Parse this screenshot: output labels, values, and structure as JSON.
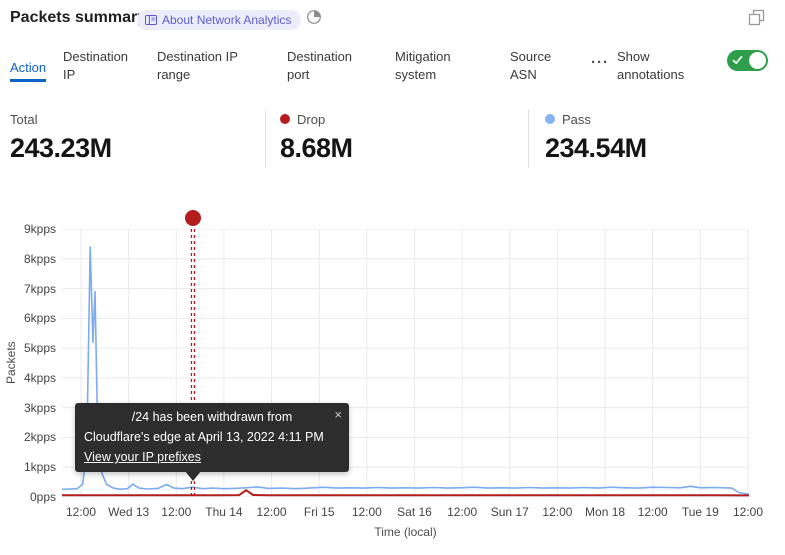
{
  "header": {
    "title": "Packets summary",
    "about_label": "About Network Analytics",
    "icons": {
      "badge": "book-icon",
      "period": "time-icon",
      "window": "popout-icon"
    }
  },
  "tabs": {
    "items": [
      {
        "label": "Action",
        "active": true
      },
      {
        "label": "Destination IP",
        "active": false
      },
      {
        "label": "Destination IP range",
        "active": false
      },
      {
        "label": "Destination port",
        "active": false
      },
      {
        "label": "Mitigation system",
        "active": false
      },
      {
        "label": "Source ASN",
        "active": false
      }
    ],
    "more": "···",
    "annotations_toggle": {
      "label": "Show annotations",
      "state": "on",
      "color": "#2e9e4b"
    }
  },
  "stats": [
    {
      "label": "Total",
      "value": "243.23M",
      "dot_color": null
    },
    {
      "label": "Drop",
      "value": "8.68M",
      "dot_color": "#b51d1d"
    },
    {
      "label": "Pass",
      "value": "234.54M",
      "dot_color": "#85b3f2"
    }
  ],
  "tooltip": {
    "lines": [
      "/24 has been withdrawn from",
      "Cloudflare's edge at April 13, 2022 4:11 PM"
    ],
    "link": "View your IP prefixes",
    "close": "×"
  },
  "chart_data": {
    "type": "line",
    "title": "Packets summary",
    "xlabel": "Time (local)",
    "ylabel": "Packets",
    "ylim": [
      0,
      9000
    ],
    "grid": true,
    "ytick_labels": [
      "0pps",
      "1kpps",
      "2kpps",
      "3kpps",
      "4kpps",
      "5kpps",
      "6kpps",
      "7kpps",
      "8kpps",
      "9kpps"
    ],
    "xtick_labels": [
      "12:00",
      "Wed 13",
      "12:00",
      "Thu 14",
      "12:00",
      "Fri 15",
      "12:00",
      "Sat 16",
      "12:00",
      "Sun 17",
      "12:00",
      "Mon 18",
      "12:00",
      "Tue 19",
      "12:00"
    ],
    "series": [
      {
        "name": "Pass",
        "color": "#7dabef",
        "units": "pps",
        "points": [
          [
            0.0,
            260
          ],
          [
            0.01,
            270
          ],
          [
            0.022,
            280
          ],
          [
            0.03,
            420
          ],
          [
            0.036,
            1500
          ],
          [
            0.041,
            8400
          ],
          [
            0.045,
            5200
          ],
          [
            0.048,
            6900
          ],
          [
            0.052,
            2200
          ],
          [
            0.058,
            800
          ],
          [
            0.065,
            420
          ],
          [
            0.075,
            300
          ],
          [
            0.085,
            260
          ],
          [
            0.095,
            280
          ],
          [
            0.103,
            430
          ],
          [
            0.112,
            300
          ],
          [
            0.125,
            270
          ],
          [
            0.14,
            290
          ],
          [
            0.152,
            420
          ],
          [
            0.163,
            300
          ],
          [
            0.175,
            280
          ],
          [
            0.19,
            330
          ],
          [
            0.205,
            280
          ],
          [
            0.22,
            300
          ],
          [
            0.235,
            280
          ],
          [
            0.25,
            290
          ],
          [
            0.268,
            310
          ],
          [
            0.285,
            340
          ],
          [
            0.3,
            290
          ],
          [
            0.32,
            300
          ],
          [
            0.34,
            280
          ],
          [
            0.36,
            300
          ],
          [
            0.38,
            330
          ],
          [
            0.4,
            300
          ],
          [
            0.42,
            310
          ],
          [
            0.44,
            300
          ],
          [
            0.46,
            320
          ],
          [
            0.48,
            300
          ],
          [
            0.5,
            310
          ],
          [
            0.52,
            300
          ],
          [
            0.54,
            320
          ],
          [
            0.56,
            300
          ],
          [
            0.58,
            310
          ],
          [
            0.6,
            330
          ],
          [
            0.62,
            300
          ],
          [
            0.64,
            310
          ],
          [
            0.66,
            300
          ],
          [
            0.68,
            320
          ],
          [
            0.7,
            300
          ],
          [
            0.72,
            310
          ],
          [
            0.74,
            300
          ],
          [
            0.76,
            320
          ],
          [
            0.78,
            300
          ],
          [
            0.8,
            330
          ],
          [
            0.82,
            310
          ],
          [
            0.84,
            300
          ],
          [
            0.86,
            330
          ],
          [
            0.88,
            320
          ],
          [
            0.9,
            310
          ],
          [
            0.914,
            360
          ],
          [
            0.93,
            310
          ],
          [
            0.95,
            320
          ],
          [
            0.975,
            300
          ],
          [
            0.985,
            150
          ],
          [
            1.0,
            90
          ]
        ]
      },
      {
        "name": "Drop",
        "color": "#b51d1d",
        "units": "pps",
        "points": [
          [
            0.0,
            60
          ],
          [
            0.05,
            62
          ],
          [
            0.1,
            58
          ],
          [
            0.15,
            62
          ],
          [
            0.2,
            60
          ],
          [
            0.23,
            62
          ],
          [
            0.258,
            65
          ],
          [
            0.268,
            230
          ],
          [
            0.278,
            68
          ],
          [
            0.3,
            60
          ],
          [
            0.35,
            62
          ],
          [
            0.4,
            58
          ],
          [
            0.45,
            62
          ],
          [
            0.5,
            60
          ],
          [
            0.55,
            62
          ],
          [
            0.6,
            58
          ],
          [
            0.65,
            62
          ],
          [
            0.7,
            60
          ],
          [
            0.75,
            62
          ],
          [
            0.8,
            58
          ],
          [
            0.85,
            62
          ],
          [
            0.9,
            60
          ],
          [
            0.95,
            62
          ],
          [
            1.0,
            55
          ]
        ]
      }
    ],
    "annotation": {
      "x": 0.1906,
      "color": "#b51d1d",
      "label": "/24 has been withdrawn from Cloudflare's edge at April 13, 2022 4:11 PM",
      "link": "View your IP prefixes"
    }
  }
}
